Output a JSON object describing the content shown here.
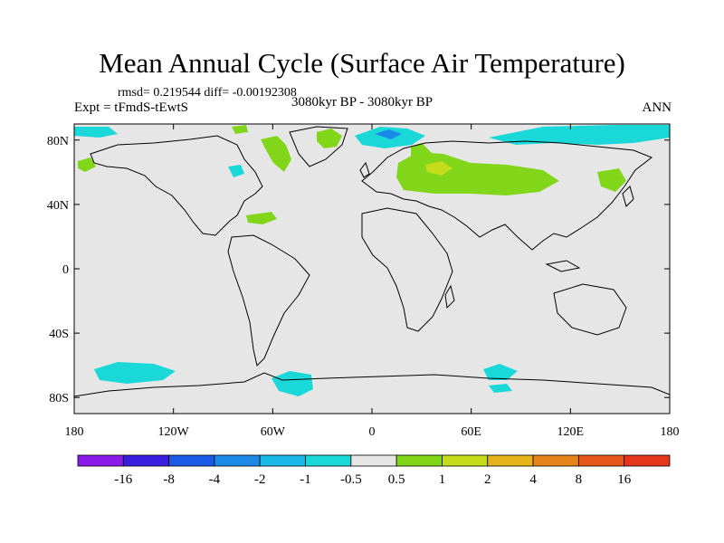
{
  "title": "Mean Annual Cycle (Surface Air Temperature)",
  "stats": "rmsd= 0.219544 diff= -0.00192308",
  "experiment": "Expt = tFmdS-tEwtS",
  "period": "3080kyr BP - 3080kyr BP",
  "season": "ANN",
  "axes": {
    "lat_labels": [
      {
        "value": 80,
        "label": "80N"
      },
      {
        "value": 40,
        "label": "40N"
      },
      {
        "value": 0,
        "label": "0"
      },
      {
        "value": -40,
        "label": "40S"
      },
      {
        "value": -80,
        "label": "80S"
      }
    ],
    "lon_labels": [
      {
        "value": -180,
        "label": "180"
      },
      {
        "value": -120,
        "label": "120W"
      },
      {
        "value": -60,
        "label": "60W"
      },
      {
        "value": 0,
        "label": "0"
      },
      {
        "value": 60,
        "label": "60E"
      },
      {
        "value": 120,
        "label": "120E"
      },
      {
        "value": 180,
        "label": "180"
      }
    ]
  },
  "colorbar": {
    "labels": [
      "-16",
      "-8",
      "-4",
      "-2",
      "-1",
      "-0.5",
      "0.5",
      "1",
      "2",
      "4",
      "8",
      "16"
    ],
    "colors": [
      "#8a1aea",
      "#3a1ee0",
      "#1a5ae6",
      "#1a8ae6",
      "#1ab8e6",
      "#1ad8d8",
      "#e6e6e6",
      "#82d61a",
      "#c4dc1a",
      "#e6b41a",
      "#e6841a",
      "#e6581a",
      "#e6361a"
    ]
  }
}
